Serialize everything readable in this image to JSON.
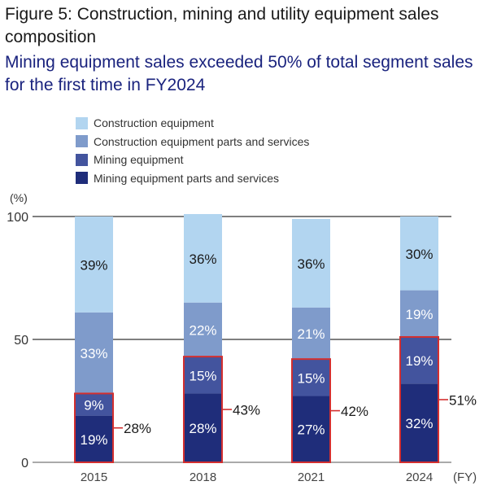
{
  "title": "Figure 5: Construction, mining and utility equipment sales composition",
  "subtitle": "Mining equipment sales exceeded 50% of total segment sales for the first time in FY2024",
  "chart_data": {
    "type": "bar",
    "stacked": true,
    "title": "Figure 5: Construction, mining and utility equipment sales composition",
    "subtitle": "Mining equipment sales exceeded 50% of total segment sales for the first time in FY2024",
    "xlabel": "(FY)",
    "ylabel": "(%)",
    "ylim": [
      0,
      100
    ],
    "yticks": [
      0,
      50,
      100
    ],
    "grid": true,
    "legend_position": "top-left",
    "categories": [
      "2015",
      "2018",
      "2021",
      "2024"
    ],
    "series": [
      {
        "name": "Mining equipment parts and services",
        "color": "#1f2d7a",
        "label_color": "#ffffff",
        "values": [
          19,
          28,
          27,
          32
        ]
      },
      {
        "name": "Mining equipment",
        "color": "#43549e",
        "label_color": "#ffffff",
        "values": [
          9,
          15,
          15,
          19
        ]
      },
      {
        "name": "Construction equipment parts and services",
        "color": "#7f9bcb",
        "label_color": "#ffffff",
        "values": [
          33,
          22,
          21,
          19
        ]
      },
      {
        "name": "Construction equipment",
        "color": "#b2d5f0",
        "label_color": "#1a1a1a",
        "values": [
          39,
          36,
          36,
          30
        ]
      }
    ],
    "mining_totals": {
      "values": [
        28,
        43,
        42,
        51
      ],
      "labels": [
        "28%",
        "43%",
        "42%",
        "51%"
      ],
      "highlight_color": "#d32f2f"
    }
  },
  "legend": {
    "items": [
      {
        "label": "Construction equipment",
        "color": "#b2d5f0"
      },
      {
        "label": "Construction equipment parts and services",
        "color": "#7f9bcb"
      },
      {
        "label": "Mining equipment",
        "color": "#43549e"
      },
      {
        "label": "Mining equipment parts and services",
        "color": "#1f2d7a"
      }
    ]
  }
}
